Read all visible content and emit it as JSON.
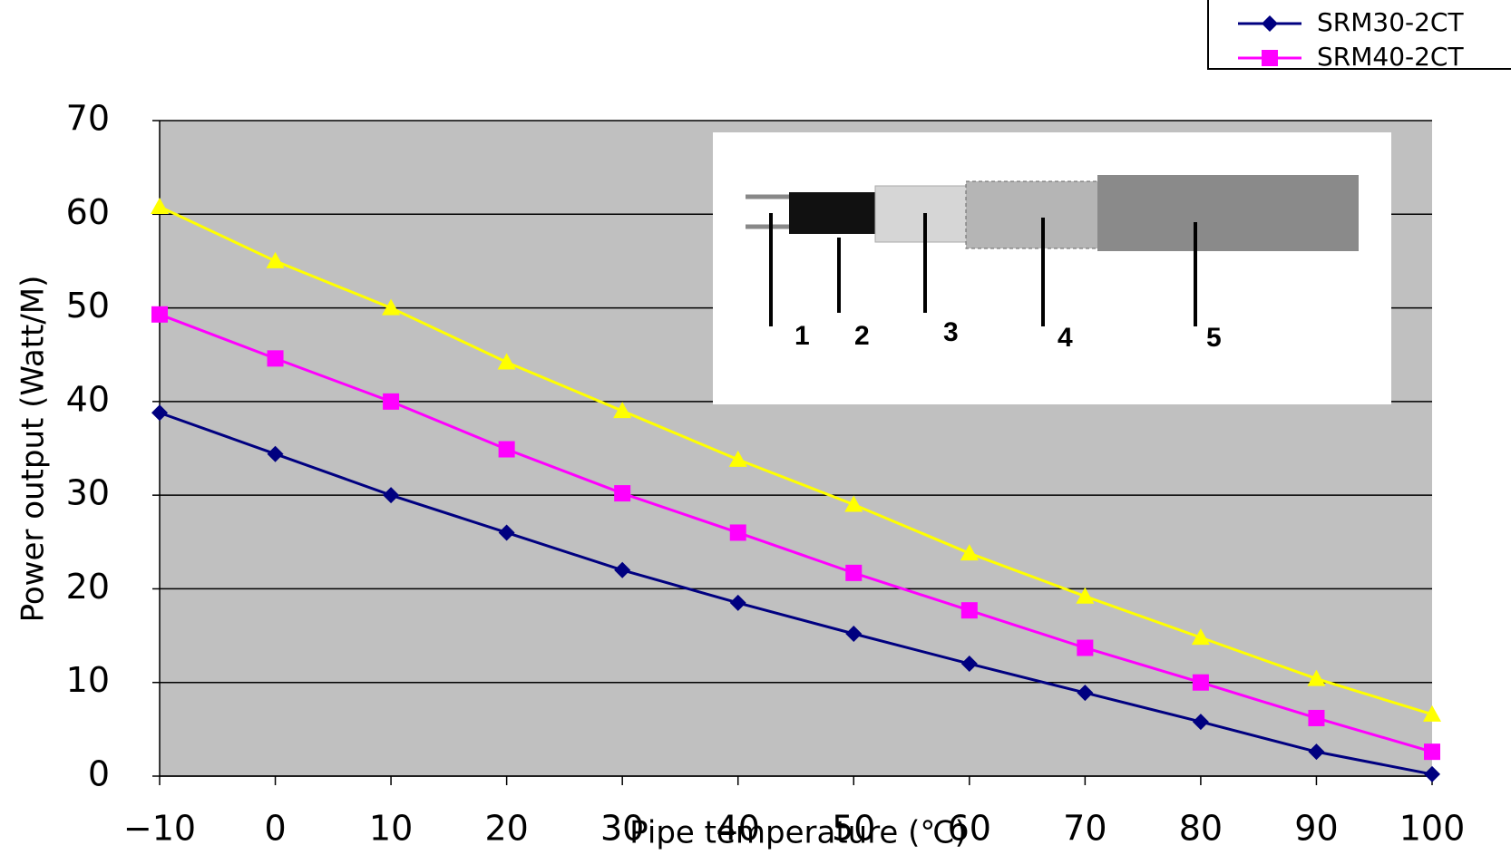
{
  "chart_data": {
    "type": "line",
    "ylabel": "Power output (Watt/M)",
    "xlabel": "Pipe temperature (℃)",
    "x": [
      -10,
      0,
      10,
      20,
      30,
      40,
      50,
      60,
      70,
      80,
      90,
      100
    ],
    "xlim": [
      -10,
      100
    ],
    "xticks": [
      {
        "value": -10,
        "label": "−10"
      },
      0,
      10,
      20,
      30,
      40,
      50,
      60,
      70,
      80,
      90,
      100
    ],
    "ylim": [
      0,
      70
    ],
    "yticks": [
      0,
      10,
      20,
      30,
      40,
      50,
      60,
      70
    ],
    "grid": true,
    "legend": "top-right",
    "series": [
      {
        "name": "SRM30-2CT",
        "color": "#000080",
        "marker": "diamond",
        "values": [
          38.8,
          34.4,
          30,
          26,
          22,
          18.5,
          15.2,
          12,
          8.9,
          5.8,
          2.6,
          0.2
        ]
      },
      {
        "name": "SRM40-2CT",
        "color": "#ff00ff",
        "marker": "square",
        "values": [
          49.3,
          44.6,
          40,
          34.9,
          30.2,
          26,
          21.7,
          17.7,
          13.7,
          10,
          6.2,
          2.6
        ]
      },
      {
        "color": "#ffff00",
        "marker": "triangle",
        "values": [
          60.8,
          55,
          50,
          44.2,
          39,
          33.8,
          29,
          23.8,
          19.2,
          14.8,
          10.4,
          6.6
        ]
      }
    ]
  },
  "inset": {
    "labels": [
      "1",
      "2",
      "3",
      "4",
      "5"
    ]
  }
}
